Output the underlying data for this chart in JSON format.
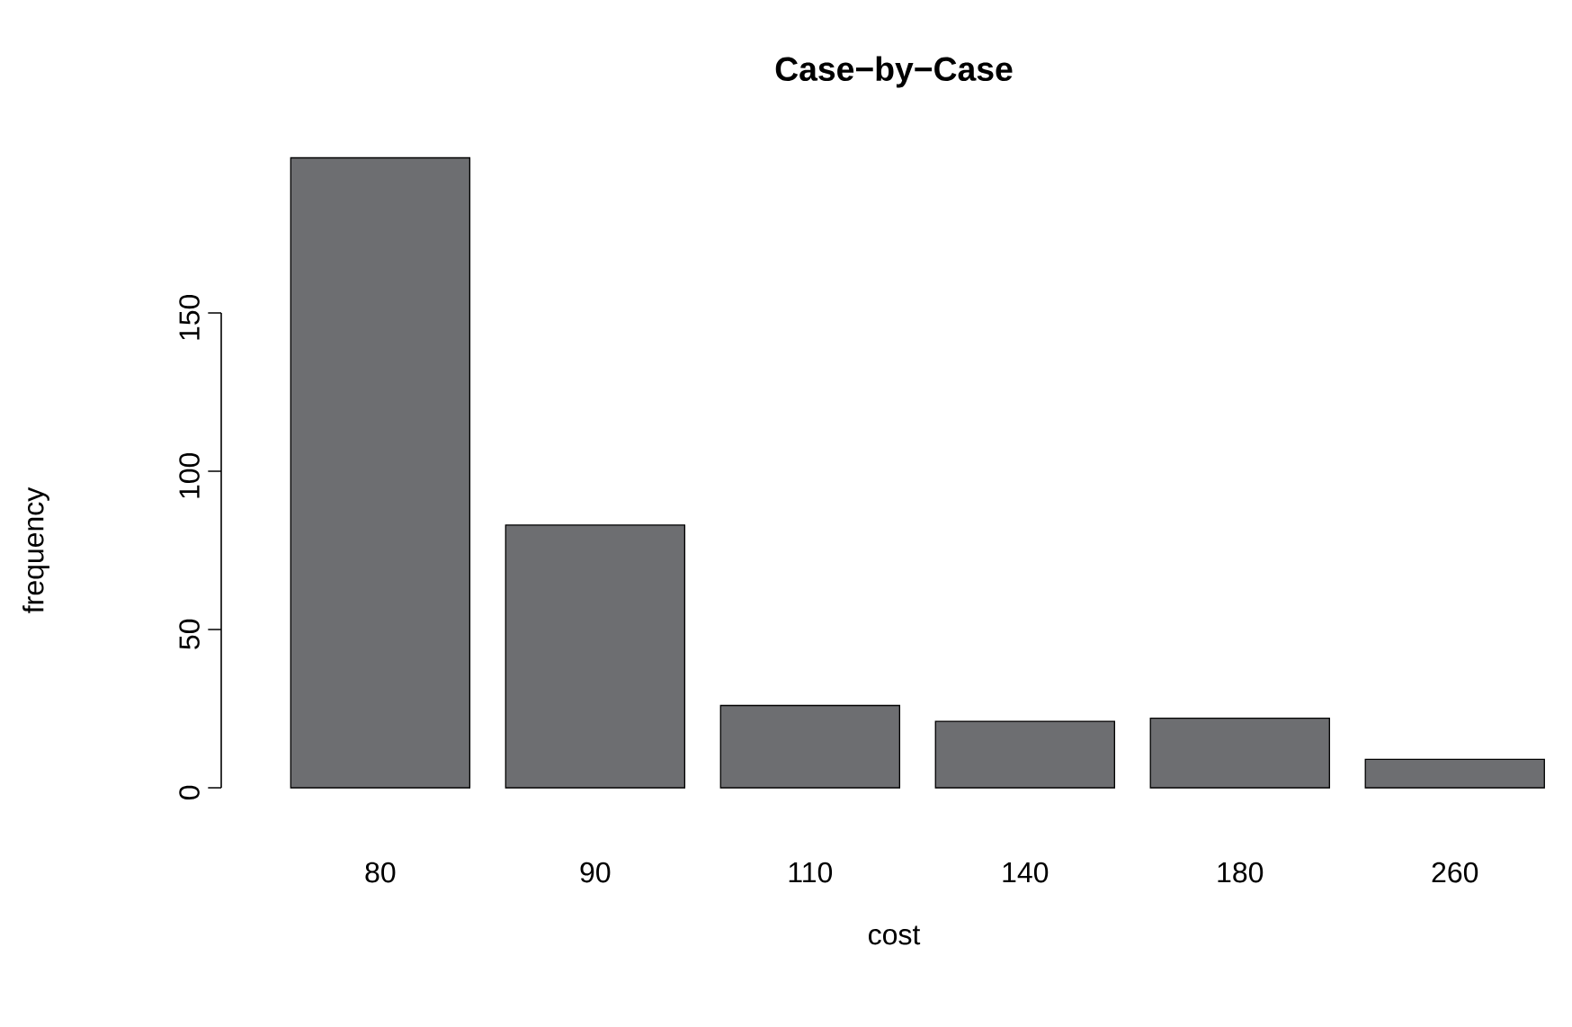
{
  "chart_data": {
    "type": "bar",
    "title": "Case−by−Case",
    "xlabel": "cost",
    "ylabel": "frequency",
    "categories": [
      "80",
      "90",
      "110",
      "140",
      "180",
      "260"
    ],
    "values": [
      199,
      83,
      26,
      21,
      22,
      9
    ],
    "color": "#6d6e71",
    "ylim": [
      0,
      200
    ],
    "yticks": [
      0,
      50,
      100,
      150
    ],
    "grid": false
  }
}
